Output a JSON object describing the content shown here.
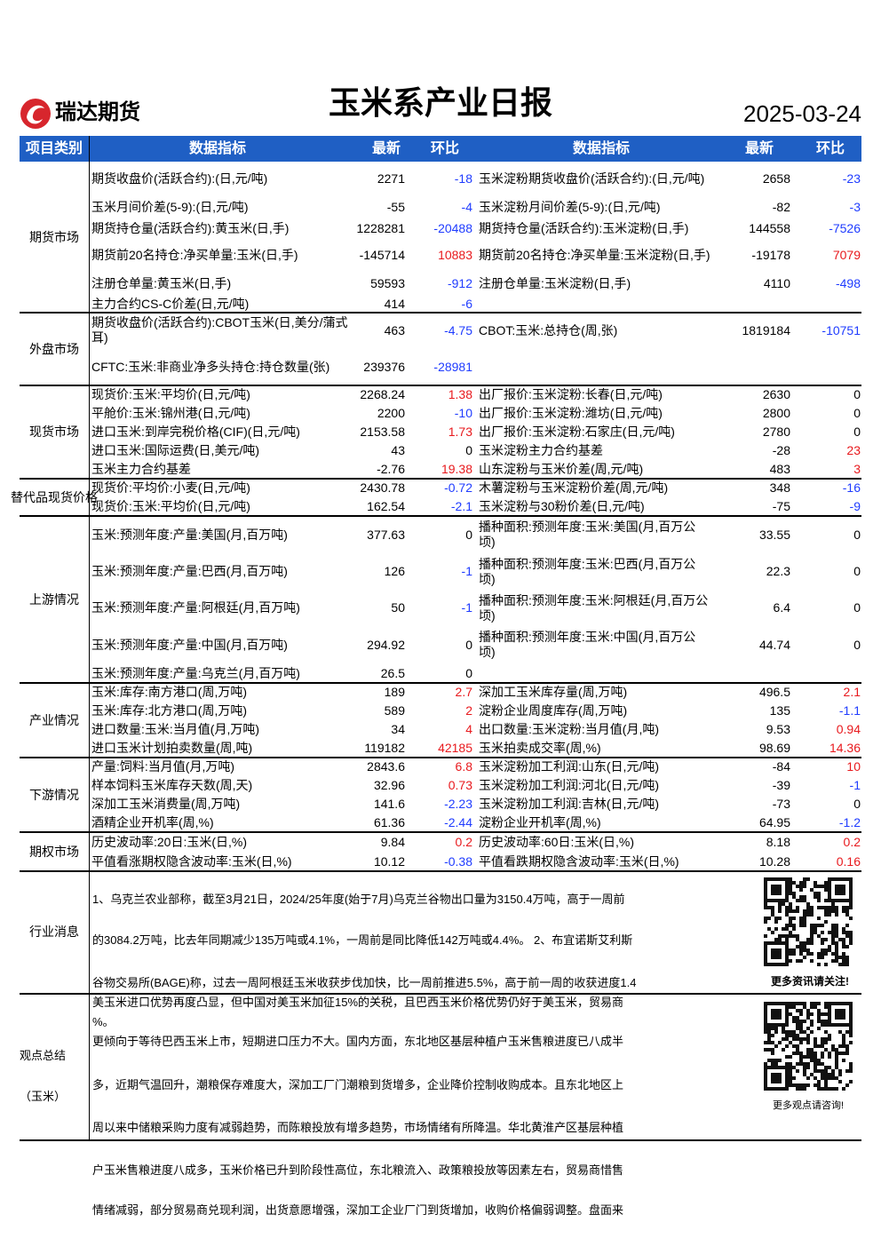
{
  "header": {
    "company": "瑞达期货",
    "title": "玉米系产业日报",
    "date": "2025-03-24"
  },
  "table": {
    "columns": [
      "项目类别",
      "数据指标",
      "最新",
      "环比",
      "数据指标",
      "最新",
      "环比"
    ],
    "sections": [
      {
        "category": "期货市场",
        "rows": [
          {
            "left": [
              "期货收盘价(活跃合约):(日,元/吨)",
              2271,
              -18
            ],
            "right": [
              "玉米淀粉期货收盘价(活跃合约):(日,元/吨)",
              2658,
              -23
            ]
          },
          {
            "left": [
              "玉米月间价差(5-9):(日,元/吨)",
              -55,
              -4
            ],
            "right": [
              "玉米淀粉月间价差(5-9):(日,元/吨)",
              -82,
              -3
            ]
          },
          {
            "left": [
              "期货持仓量(活跃合约):黄玉米(日,手)",
              1228281,
              -20488
            ],
            "right": [
              "期货持仓量(活跃合约):玉米淀粉(日,手)",
              144558,
              -7526
            ]
          },
          {
            "left": [
              "期货前20名持仓:净买单量:玉米(日,手)",
              -145714,
              10883
            ],
            "right": [
              "期货前20名持仓:净买单量:玉米淀粉(日,手)",
              -19178,
              7079
            ]
          },
          {
            "left": [
              "注册仓单量:黄玉米(日,手)",
              59593,
              -912
            ],
            "right": [
              "注册仓单量:玉米淀粉(日,手)",
              4110,
              -498
            ]
          },
          {
            "left": [
              "主力合约CS-C价差(日,元/吨)",
              414,
              -6
            ]
          }
        ]
      },
      {
        "category": "外盘市场",
        "rows": [
          {
            "left": [
              "期货收盘价(活跃合约):CBOT玉米(日,美分/蒲式耳)",
              463,
              -4.75
            ],
            "right": [
              "CBOT:玉米:总持仓(周,张)",
              1819184,
              -10751
            ]
          },
          {
            "left": [
              "CFTC:玉米:非商业净多头持仓:持仓数量(张)",
              239376,
              -28981
            ]
          }
        ]
      },
      {
        "category": "现货市场",
        "rows": [
          {
            "left": [
              "现货价:玉米:平均价(日,元/吨)",
              2268.24,
              1.38
            ],
            "right": [
              "出厂报价:玉米淀粉:长春(日,元/吨)",
              2630,
              0
            ]
          },
          {
            "left": [
              "平舱价:玉米:锦州港(日,元/吨)",
              2200,
              -10
            ],
            "right": [
              "出厂报价:玉米淀粉:潍坊(日,元/吨)",
              2800,
              0
            ]
          },
          {
            "left": [
              "进口玉米:到岸完税价格(CIF)(日,元/吨)",
              2153.58,
              1.73
            ],
            "right": [
              "出厂报价:玉米淀粉:石家庄(日,元/吨)",
              2780,
              0
            ]
          },
          {
            "left": [
              "进口玉米:国际运费(日,美元/吨)",
              43,
              0
            ],
            "right": [
              "玉米淀粉主力合约基差",
              -28,
              23
            ]
          },
          {
            "left": [
              "玉米主力合约基差",
              -2.76,
              19.38
            ],
            "right": [
              "山东淀粉与玉米价差(周,元/吨)",
              483,
              3
            ]
          }
        ]
      },
      {
        "category": "替代品现货价格",
        "rows": [
          {
            "left": [
              "现货价:平均价:小麦(日,元/吨)",
              2430.78,
              -0.72
            ],
            "right": [
              "木薯淀粉与玉米淀粉价差(周,元/吨)",
              348,
              -16
            ]
          },
          {
            "left": [
              "现货价:玉米:平均价(日,元/吨)",
              162.54,
              -2.1
            ],
            "right": [
              "玉米淀粉与30粉价差(日,元/吨)",
              -75,
              -9
            ]
          }
        ]
      },
      {
        "category": "上游情况",
        "rows": [
          {
            "left": [
              "玉米:预测年度:产量:美国(月,百万吨)",
              377.63,
              0
            ],
            "right": [
              "播种面积:预测年度:玉米:美国(月,百万公顷)",
              33.55,
              0
            ]
          },
          {
            "left": [
              "玉米:预测年度:产量:巴西(月,百万吨)",
              126,
              -1
            ],
            "right": [
              "播种面积:预测年度:玉米:巴西(月,百万公顷)",
              22.3,
              0
            ]
          },
          {
            "left": [
              "玉米:预测年度:产量:阿根廷(月,百万吨)",
              50,
              -1
            ],
            "right": [
              "播种面积:预测年度:玉米:阿根廷(月,百万公顷)",
              6.4,
              0
            ]
          },
          {
            "left": [
              "玉米:预测年度:产量:中国(月,百万吨)",
              294.92,
              0
            ],
            "right": [
              "播种面积:预测年度:玉米:中国(月,百万公顷)",
              44.74,
              0
            ]
          },
          {
            "left": [
              "玉米:预测年度:产量:乌克兰(月,百万吨)",
              26.5,
              0
            ]
          }
        ]
      },
      {
        "category": "产业情况",
        "rows": [
          {
            "left": [
              "玉米:库存:南方港口(周,万吨)",
              189,
              2.7
            ],
            "right": [
              "深加工玉米库存量(周,万吨)",
              496.5,
              2.1
            ]
          },
          {
            "left": [
              "玉米:库存:北方港口(周,万吨)",
              589,
              2
            ],
            "right": [
              "淀粉企业周度库存(周,万吨)",
              135,
              -1.1
            ]
          },
          {
            "left": [
              "进口数量:玉米:当月值(月,万吨)",
              34,
              4
            ],
            "right": [
              "出口数量:玉米淀粉:当月值(月,吨)",
              9.53,
              0.94
            ]
          },
          {
            "left": [
              "进口玉米计划拍卖数量(周,吨)",
              119182,
              42185
            ],
            "right": [
              "玉米拍卖成交率(周,%)",
              98.69,
              14.36
            ]
          }
        ]
      },
      {
        "category": "下游情况",
        "rows": [
          {
            "left": [
              "产量:饲料:当月值(月,万吨)",
              2843.6,
              6.8
            ],
            "right": [
              "玉米淀粉加工利润:山东(日,元/吨)",
              -84,
              10
            ]
          },
          {
            "left": [
              "样本饲料玉米库存天数(周,天)",
              32.96,
              0.73
            ],
            "right": [
              "玉米淀粉加工利润:河北(日,元/吨)",
              -39,
              -1
            ]
          },
          {
            "left": [
              "深加工玉米消费量(周,万吨)",
              141.6,
              -2.23
            ],
            "right": [
              "玉米淀粉加工利润:吉林(日,元/吨)",
              -73,
              0
            ]
          },
          {
            "left": [
              "酒精企业开机率(周,%)",
              61.36,
              -2.44
            ],
            "right": [
              "淀粉企业开机率(周,%)",
              64.95,
              -1.2
            ]
          }
        ]
      },
      {
        "category": "期权市场",
        "rows": [
          {
            "left": [
              "历史波动率:20日:玉米(日,%)",
              9.84,
              0.2
            ],
            "right": [
              "历史波动率:60日:玉米(日,%)",
              8.18,
              0.2
            ]
          },
          {
            "left": [
              "平值看涨期权隐含波动率:玉米(日,%)",
              10.12,
              -0.38
            ],
            "right": [
              "平值看跌期权隐含波动率:玉米(日,%)",
              10.28,
              0.16
            ]
          }
        ]
      }
    ]
  },
  "news": {
    "category": "行业消息",
    "lines": [
      "1、乌克兰农业部称，截至3月21日，2024/25年度(始于7月)乌克兰谷物出口量为3150.4万吨，高于一周前",
      "的3084.2万吨，比去年同期减少135万吨或4.1%，一周前是同比降低142万吨或4.4%。 2、布宜诺斯艾利斯",
      "谷物交易所(BAGE)称，过去一周阿根廷玉米收获步伐加快，比一周前推进5.5%，高于前一周的收获进度1.4"
    ],
    "qr_caption": "更多资讯请关注!"
  },
  "opinion": {
    "category": "观点总结（玉米）",
    "lines": [
      "美玉米进口优势再度凸显，但中国对美玉米加征15%的关税，且巴西玉米价格优势仍好于美玉米，贸易商",
      "%。",
      "更倾向于等待巴西玉米上市，短期进口压力不大。国内方面，东北地区基层种植户玉米售粮进度已八成半",
      "多，近期气温回升，潮粮保存难度大，深加工厂门潮粮到货增多，企业降价控制收购成本。且东北地区上",
      "周以来中储粮采购力度有减弱趋势，而陈粮投放有增多趋势，市场情绪有所降温。华北黄淮产区基层种植",
      "户玉米售粮进度八成多，玉米价格已升到阶段性高位，东北粮流入、政策粮投放等因素左右，贸易商惜售",
      "情绪减弱，部分贸易商兑现利润，出货意愿增强，深加工企业厂门到货增加，收购价格偏弱调整。盘面来"
    ],
    "qr_caption": "更多观点请咨询!"
  }
}
